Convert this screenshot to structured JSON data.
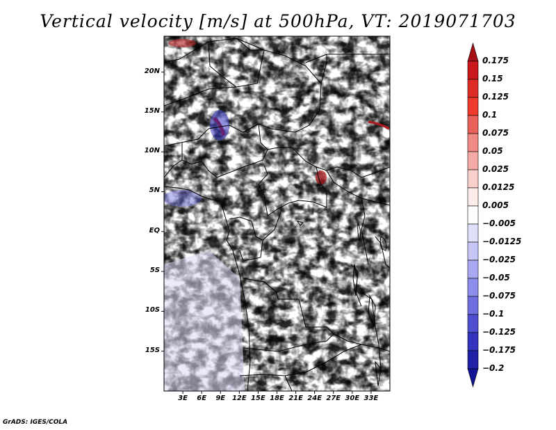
{
  "title": "Vertical velocity [m/s] at 500hPa, VT: 2019071703",
  "footer": "GrADS: IGES/COLA",
  "map": {
    "variable": "Vertical velocity",
    "units": "m/s",
    "level": "500hPa",
    "valid_time": "2019071703",
    "lon_range": [
      0,
      36
    ],
    "lat_range": [
      -20,
      24.5
    ],
    "lat_labels": [
      {
        "value": 20,
        "text": "20N"
      },
      {
        "value": 15,
        "text": "15N"
      },
      {
        "value": 10,
        "text": "10N"
      },
      {
        "value": 5,
        "text": "5N"
      },
      {
        "value": 0,
        "text": "EQ"
      },
      {
        "value": -5,
        "text": "5S"
      },
      {
        "value": -10,
        "text": "10S"
      },
      {
        "value": -15,
        "text": "15S"
      }
    ],
    "lon_labels": [
      {
        "value": 3,
        "text": "3E"
      },
      {
        "value": 6,
        "text": "6E"
      },
      {
        "value": 9,
        "text": "9E"
      },
      {
        "value": 12,
        "text": "12E"
      },
      {
        "value": 15,
        "text": "15E"
      },
      {
        "value": 18,
        "text": "18E"
      },
      {
        "value": 21,
        "text": "21E"
      },
      {
        "value": 24,
        "text": "24E"
      },
      {
        "value": 27,
        "text": "27E"
      },
      {
        "value": 30,
        "text": "30E"
      },
      {
        "value": 33,
        "text": "33E"
      }
    ]
  },
  "colorbar": {
    "labels": [
      "0.175",
      "0.15",
      "0.125",
      "0.1",
      "0.075",
      "0.05",
      "0.025",
      "0.0125",
      "0.005",
      "−0.005",
      "−0.0125",
      "−0.025",
      "−0.05",
      "−0.075",
      "−0.1",
      "−0.125",
      "−0.175",
      "−0.2"
    ],
    "colors": [
      "#a50f15",
      "#cb181d",
      "#de2d26",
      "#ef3b2c",
      "#e8615a",
      "#f08a84",
      "#f5aaa5",
      "#f9cfcc",
      "#fdecea",
      "#ffffff",
      "#e0e0fb",
      "#c6c6f7",
      "#a9a9f1",
      "#8d8deb",
      "#6f6fe0",
      "#4f4fd2",
      "#3434c0",
      "#2222a8",
      "#141496"
    ]
  }
}
